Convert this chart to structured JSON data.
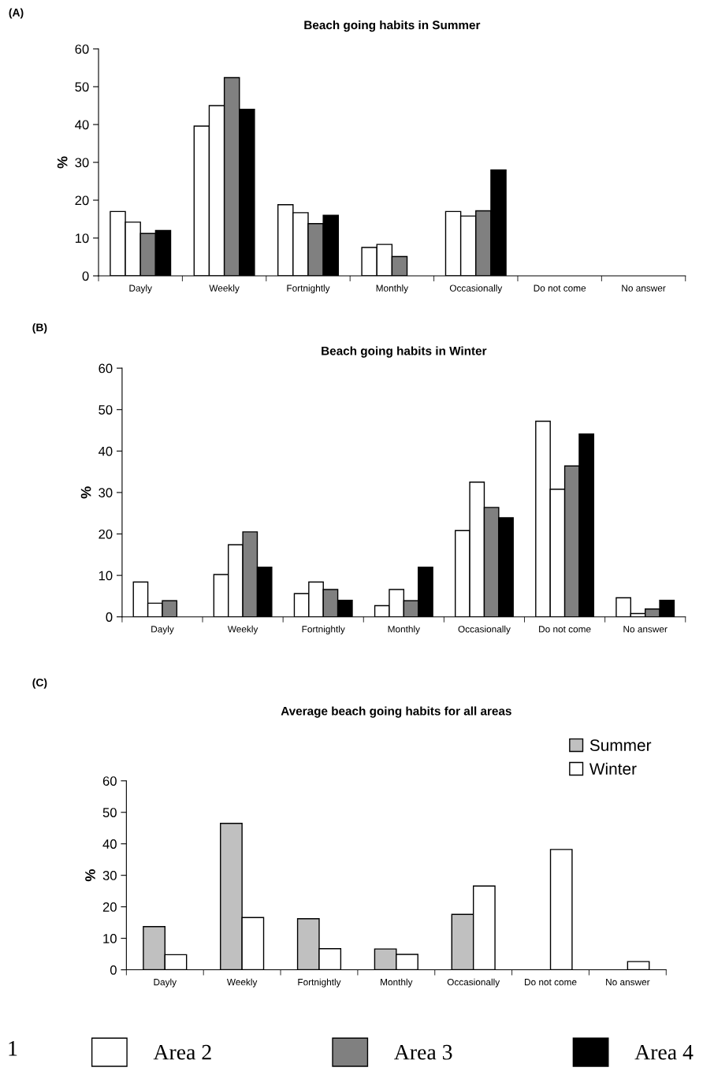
{
  "chart_data": [
    {
      "type": "bar",
      "title": "Beach going habits in Summer",
      "ylabel": "%",
      "annotations": [
        "(A)"
      ],
      "categories": [
        "Dayly",
        "Weekly",
        "Fortnightly",
        "Monthly",
        "Occasionally",
        "Do not come",
        "No answer"
      ],
      "series": [
        {
          "color": "#ffffff",
          "values": [
            17,
            39.6,
            18.8,
            7.5,
            17,
            null,
            null
          ]
        },
        {
          "color": "#ffffff",
          "values": [
            14.2,
            45,
            16.7,
            8.3,
            15.8,
            null,
            null
          ]
        },
        {
          "color": "#808080",
          "values": [
            11.2,
            52.4,
            13.8,
            5.1,
            17.2,
            null,
            null
          ]
        },
        {
          "color": "#000000",
          "values": [
            12,
            44,
            16,
            null,
            28,
            null,
            null
          ]
        }
      ],
      "ylim": [
        0,
        60
      ],
      "yticks": [
        0,
        10,
        20,
        30,
        40,
        50,
        60
      ]
    },
    {
      "type": "bar",
      "title": "Beach going habits in Winter",
      "ylabel": "%",
      "annotations": [
        "(B)",
        "1"
      ],
      "categories": [
        "Dayly",
        "Weekly",
        "Fortnightly",
        "Monthly",
        "Occasionally",
        "Do not come",
        "No answer"
      ],
      "series": [
        {
          "color": "#ffffff",
          "values": [
            8.4,
            10.2,
            5.6,
            2.7,
            20.8,
            47.2,
            4.6
          ]
        },
        {
          "name": "Area 2",
          "color": "#ffffff",
          "values": [
            3.3,
            17.4,
            8.4,
            6.6,
            32.5,
            30.8,
            0.8
          ]
        },
        {
          "name": "Area 3",
          "color": "#808080",
          "values": [
            3.9,
            20.5,
            6.6,
            3.9,
            26.4,
            36.4,
            1.9
          ]
        },
        {
          "name": "Area 4",
          "color": "#000000",
          "values": [
            null,
            12,
            4,
            12,
            23.9,
            44.1,
            4
          ]
        }
      ],
      "ylim": [
        0,
        60
      ],
      "yticks": [
        0,
        10,
        20,
        30,
        40,
        50,
        60
      ],
      "legend": "bottom"
    },
    {
      "type": "bar",
      "title": "Average beach going habits for all areas",
      "ylabel": "%",
      "annotations": [
        "(C)"
      ],
      "categories": [
        "Dayly",
        "Weekly",
        "Fortnightly",
        "Monthly",
        "Occasionally",
        "Do not come",
        "No answer"
      ],
      "series": [
        {
          "name": "Summer",
          "color": "#c0c0c0",
          "values": [
            13.7,
            46.5,
            16.2,
            6.6,
            17.6,
            null,
            null
          ]
        },
        {
          "name": "Winter",
          "color": "#ffffff",
          "values": [
            4.8,
            16.6,
            6.7,
            4.9,
            26.6,
            38.2,
            2.6
          ]
        }
      ],
      "ylim": [
        0,
        60
      ],
      "yticks": [
        0,
        10,
        20,
        30,
        40,
        50,
        60
      ],
      "legend": "top right"
    }
  ]
}
